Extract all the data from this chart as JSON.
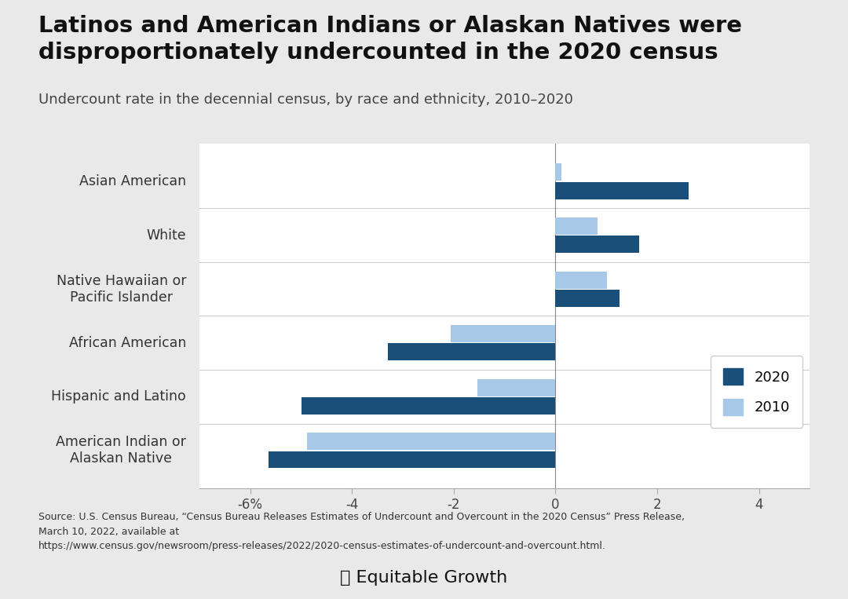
{
  "title": "Latinos and American Indians or Alaskan Natives were\ndisproportionately undercounted in the 2020 census",
  "subtitle": "Undercount rate in the decennial census, by race and ethnicity, 2010–2020",
  "categories": [
    "Asian American",
    "White",
    "Native Hawaiian or\nPacific Islander",
    "African American",
    "Hispanic and Latino",
    "American Indian or\nAlaskan Native"
  ],
  "values_2020": [
    2.62,
    1.64,
    1.26,
    -3.3,
    -4.99,
    -5.64
  ],
  "values_2010": [
    0.11,
    0.83,
    1.02,
    -2.06,
    -1.54,
    -4.88
  ],
  "color_2020": "#1a4f7a",
  "color_2010": "#a8c8e8",
  "xlim": [
    -7,
    5
  ],
  "xticks": [
    -6,
    -4,
    -2,
    0,
    2,
    4
  ],
  "xticklabels": [
    "-6%",
    "-4",
    "-2",
    "0",
    "2",
    "4"
  ],
  "fig_background_color": "#e9e9e9",
  "plot_background_color": "#ffffff",
  "source_text": "Source: U.S. Census Bureau, “Census Bureau Releases Estimates of Undercount and Overcount in the 2020 Census” Press Release,\nMarch 10, 2022, available at\nhttps://www.census.gov/newsroom/press-releases/2022/2020-census-estimates-of-undercount-and-overcount.html.",
  "bar_height": 0.32,
  "title_fontsize": 21,
  "subtitle_fontsize": 13,
  "label_fontsize": 12.5,
  "tick_fontsize": 12,
  "source_fontsize": 9
}
